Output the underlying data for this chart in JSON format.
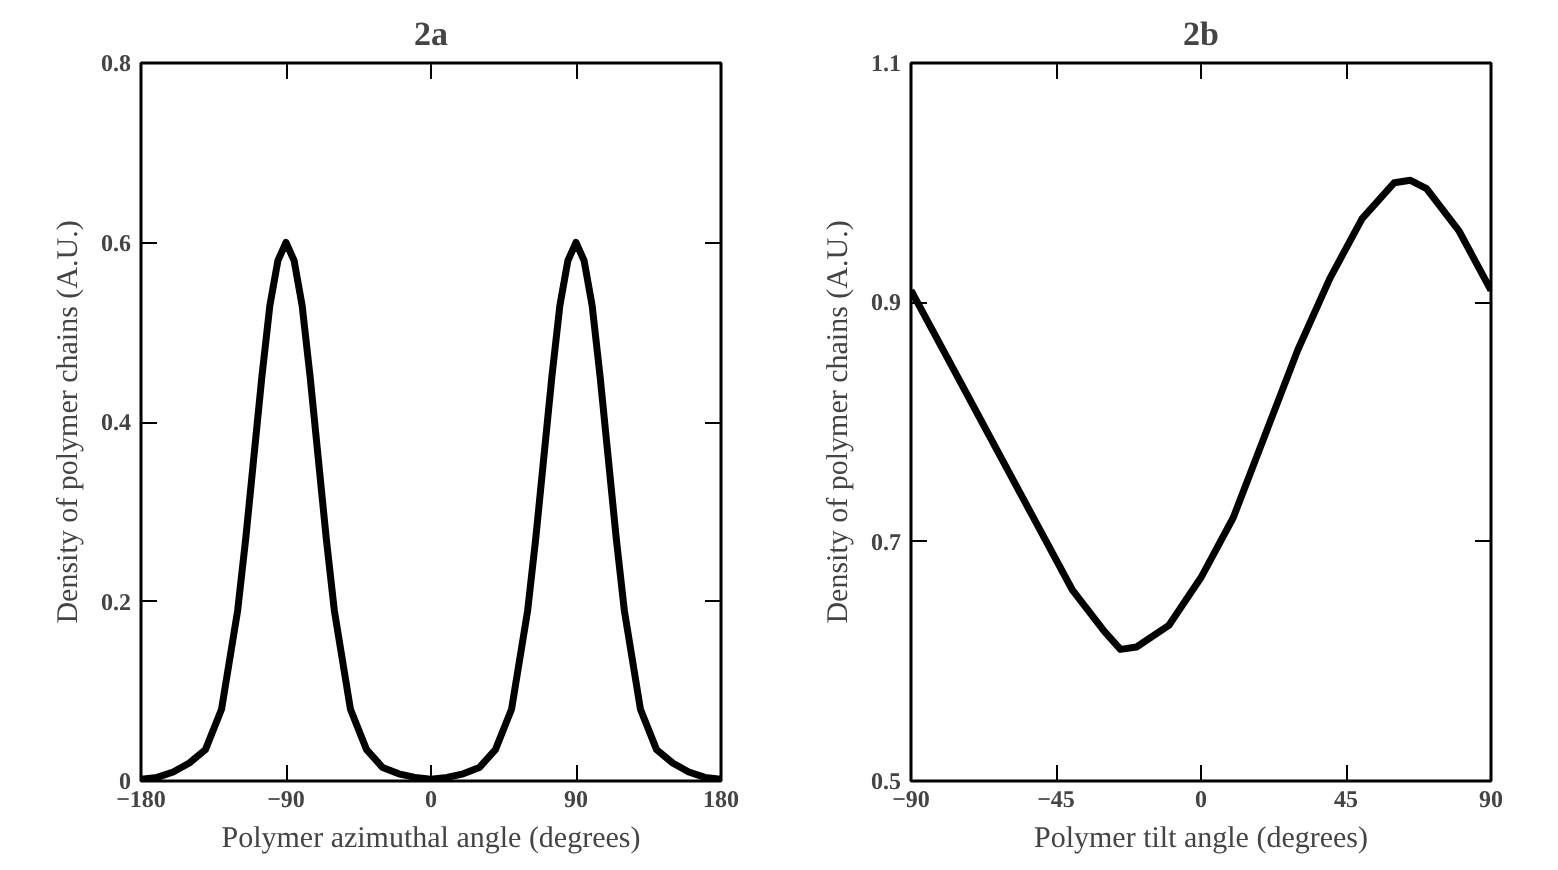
{
  "chart_data": [
    {
      "type": "line",
      "title": "2a",
      "xlabel": "Polymer azimuthal angle (degrees)",
      "ylabel": "Density of polymer chains (A.U.)",
      "x": [
        -180,
        -170,
        -160,
        -150,
        -140,
        -130,
        -120,
        -115,
        -110,
        -105,
        -100,
        -95,
        -90,
        -85,
        -80,
        -75,
        -70,
        -65,
        -60,
        -50,
        -40,
        -30,
        -20,
        -10,
        0,
        10,
        20,
        30,
        40,
        50,
        60,
        65,
        70,
        75,
        80,
        85,
        90,
        95,
        100,
        105,
        110,
        115,
        120,
        130,
        140,
        150,
        160,
        170,
        180
      ],
      "values": [
        0.002,
        0.004,
        0.01,
        0.02,
        0.035,
        0.08,
        0.19,
        0.27,
        0.36,
        0.45,
        0.53,
        0.58,
        0.6,
        0.58,
        0.53,
        0.45,
        0.36,
        0.27,
        0.19,
        0.08,
        0.035,
        0.015,
        0.008,
        0.004,
        0.002,
        0.004,
        0.008,
        0.015,
        0.035,
        0.08,
        0.19,
        0.27,
        0.36,
        0.45,
        0.53,
        0.58,
        0.6,
        0.58,
        0.53,
        0.45,
        0.36,
        0.27,
        0.19,
        0.08,
        0.035,
        0.02,
        0.01,
        0.004,
        0.002
      ],
      "color": "#000000",
      "xlim": [
        -180,
        180
      ],
      "ylim": [
        0,
        0.8
      ],
      "xticks": [
        -180,
        -90,
        0,
        90,
        180
      ],
      "yticks": [
        0,
        0.2,
        0.4,
        0.6,
        0.8
      ],
      "grid": false,
      "marker": "none",
      "line_style": "solid"
    },
    {
      "type": "line",
      "title": "2b",
      "xlabel": "Polymer tilt angle (degrees)",
      "ylabel": "Density of polymer chains (A.U.)",
      "x": [
        -90,
        -80,
        -70,
        -60,
        -50,
        -40,
        -30,
        -25,
        -20,
        -10,
        0,
        10,
        20,
        30,
        40,
        50,
        60,
        65,
        70,
        80,
        90
      ],
      "values": [
        0.91,
        0.86,
        0.81,
        0.76,
        0.71,
        0.66,
        0.625,
        0.61,
        0.612,
        0.63,
        0.67,
        0.72,
        0.79,
        0.86,
        0.92,
        0.97,
        1.0,
        1.002,
        0.995,
        0.96,
        0.91
      ],
      "color": "#000000",
      "xlim": [
        -90,
        90
      ],
      "ylim": [
        0.5,
        1.1
      ],
      "xticks": [
        -90,
        -45,
        0,
        45,
        90
      ],
      "yticks": [
        0.5,
        0.7,
        0.9,
        1.1
      ],
      "grid": false,
      "marker": "none",
      "line_style": "solid"
    }
  ]
}
